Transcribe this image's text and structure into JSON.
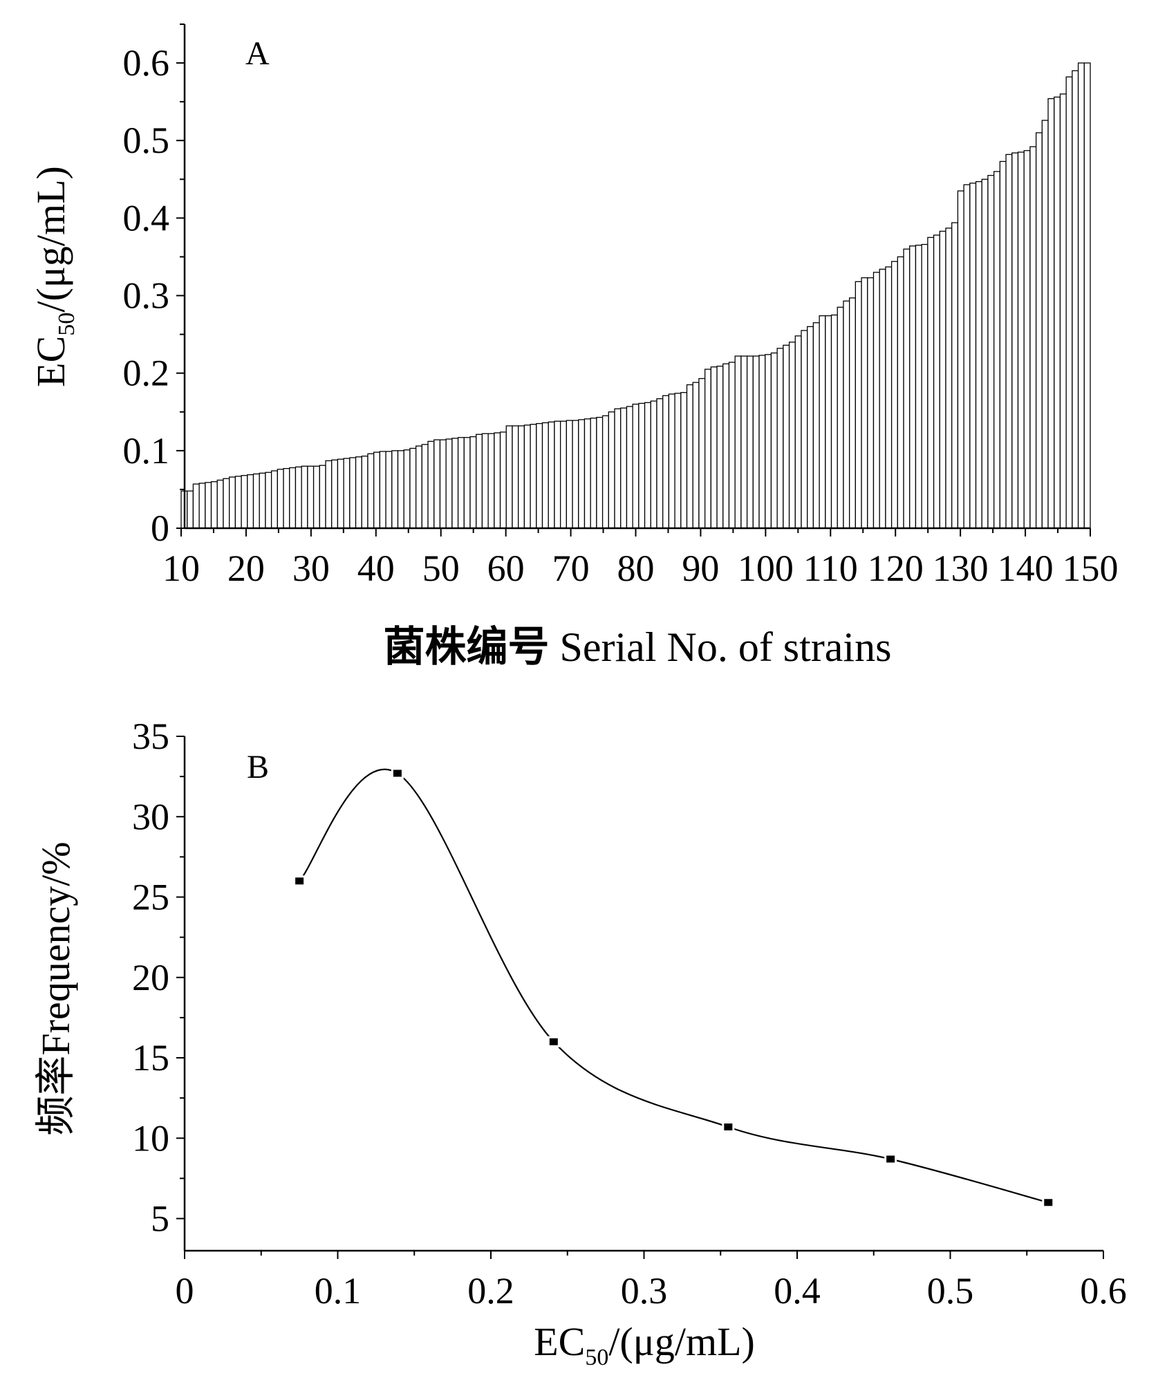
{
  "chart_data": [
    {
      "panel": "A",
      "type": "bar",
      "xlabel_cn": "菌株编号",
      "xlabel_en": "Serial No. of strains",
      "ylabel": "EC50/(μg/mL)",
      "ylabel_main": "EC",
      "ylabel_sub": "50",
      "ylabel_rest": "/(μg/mL)",
      "xlim": [
        10,
        150
      ],
      "ylim": [
        0,
        0.65
      ],
      "xticks": [
        "10",
        "20",
        "30",
        "40",
        "50",
        "60",
        "70",
        "80",
        "90",
        "100",
        "110",
        "120",
        "130",
        "140",
        "150"
      ],
      "yticks": [
        "0",
        "0.1",
        "0.2",
        "0.3",
        "0.4",
        "0.5",
        "0.6"
      ],
      "x_start": 10,
      "values": [
        0.048,
        0.048,
        0.057,
        0.058,
        0.059,
        0.06,
        0.062,
        0.064,
        0.066,
        0.067,
        0.068,
        0.069,
        0.07,
        0.071,
        0.072,
        0.074,
        0.076,
        0.077,
        0.078,
        0.079,
        0.08,
        0.08,
        0.08,
        0.081,
        0.087,
        0.088,
        0.089,
        0.09,
        0.091,
        0.092,
        0.093,
        0.096,
        0.098,
        0.099,
        0.099,
        0.1,
        0.1,
        0.101,
        0.103,
        0.106,
        0.108,
        0.112,
        0.114,
        0.114,
        0.115,
        0.116,
        0.117,
        0.117,
        0.118,
        0.121,
        0.122,
        0.122,
        0.123,
        0.124,
        0.132,
        0.132,
        0.132,
        0.133,
        0.134,
        0.135,
        0.136,
        0.137,
        0.138,
        0.138,
        0.139,
        0.139,
        0.14,
        0.141,
        0.142,
        0.143,
        0.145,
        0.15,
        0.154,
        0.155,
        0.157,
        0.16,
        0.161,
        0.162,
        0.164,
        0.167,
        0.171,
        0.173,
        0.174,
        0.175,
        0.185,
        0.188,
        0.193,
        0.205,
        0.208,
        0.209,
        0.212,
        0.214,
        0.222,
        0.222,
        0.222,
        0.222,
        0.223,
        0.224,
        0.226,
        0.232,
        0.236,
        0.24,
        0.248,
        0.255,
        0.26,
        0.265,
        0.274,
        0.274,
        0.275,
        0.285,
        0.293,
        0.297,
        0.318,
        0.323,
        0.323,
        0.33,
        0.334,
        0.337,
        0.344,
        0.35,
        0.36,
        0.364,
        0.365,
        0.366,
        0.375,
        0.378,
        0.383,
        0.387,
        0.394,
        0.435,
        0.443,
        0.445,
        0.447,
        0.45,
        0.455,
        0.46,
        0.473,
        0.482,
        0.484,
        0.485,
        0.487,
        0.492,
        0.51,
        0.526,
        0.554,
        0.556,
        0.56,
        0.582,
        0.59,
        0.6,
        0.6
      ]
    },
    {
      "panel": "B",
      "type": "line",
      "xlabel": "EC50/(μg/mL)",
      "xlabel_main": "EC",
      "xlabel_sub": "50",
      "xlabel_rest": "/(μg/mL)",
      "ylabel": "频率Frequency/%",
      "xlim": [
        0,
        0.6
      ],
      "ylim": [
        3,
        35
      ],
      "xticks": [
        "0",
        "0.1",
        "0.2",
        "0.3",
        "0.4",
        "0.5",
        "0.6"
      ],
      "yticks": [
        "5",
        "10",
        "15",
        "20",
        "25",
        "30",
        "35"
      ],
      "x": [
        0.075,
        0.139,
        0.241,
        0.355,
        0.461,
        0.564
      ],
      "y": [
        26.0,
        32.7,
        16.0,
        10.7,
        8.7,
        6.0
      ]
    }
  ]
}
